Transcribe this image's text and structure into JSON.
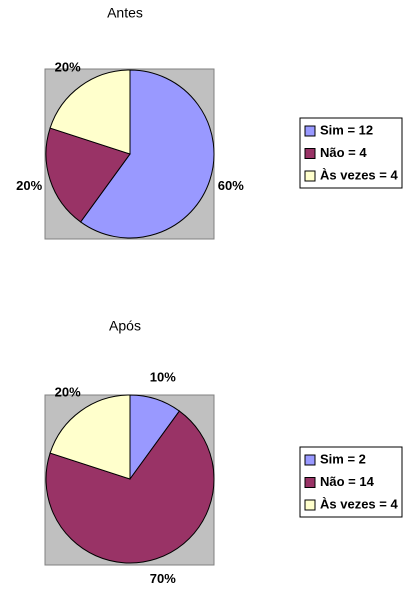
{
  "chart_data": [
    {
      "type": "pie",
      "title": "Antes",
      "categories": [
        "Sim = 12",
        "Não = 4",
        "Às vezes = 4"
      ],
      "values": [
        60,
        20,
        20
      ],
      "value_labels": [
        "60%",
        "20%",
        "20%"
      ],
      "colors": [
        "#9999ff",
        "#993366",
        "#ffffcc"
      ]
    },
    {
      "type": "pie",
      "title": "Após",
      "categories": [
        "Sim = 2",
        "Não = 14",
        "Às vezes = 4"
      ],
      "values": [
        10,
        70,
        20
      ],
      "value_labels": [
        "10%",
        "70%",
        "20%"
      ],
      "colors": [
        "#9999ff",
        "#993366",
        "#ffffcc"
      ]
    }
  ]
}
